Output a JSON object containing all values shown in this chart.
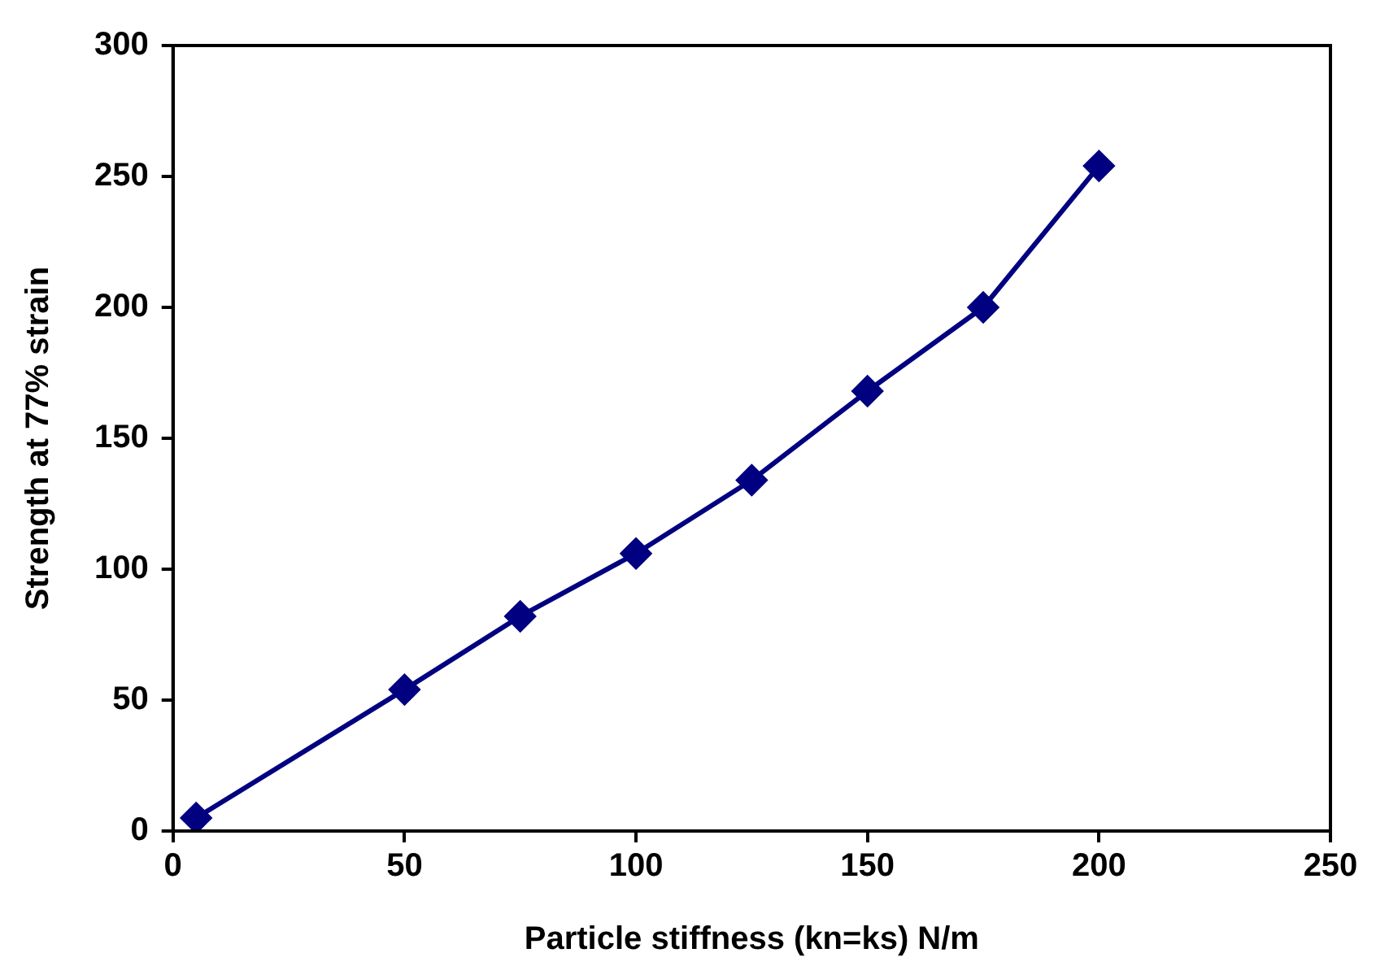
{
  "chart_data": {
    "type": "line",
    "xlabel": "Particle stiffness (kn=ks) N/m",
    "ylabel": "Strength at 77% strain",
    "x": [
      5,
      50,
      75,
      100,
      125,
      150,
      175,
      200
    ],
    "series": [
      {
        "color": "#000080",
        "values": [
          5,
          54,
          82,
          106,
          134,
          168,
          200,
          254
        ]
      }
    ],
    "xlim": [
      0,
      250
    ],
    "xticks": [
      0,
      50,
      100,
      150,
      200,
      250
    ],
    "ylim": [
      0,
      300
    ],
    "yticks": [
      0,
      50,
      100,
      150,
      200,
      250,
      300
    ],
    "grid": false,
    "legend": false,
    "marker": "diamond",
    "line_style": "solid"
  }
}
